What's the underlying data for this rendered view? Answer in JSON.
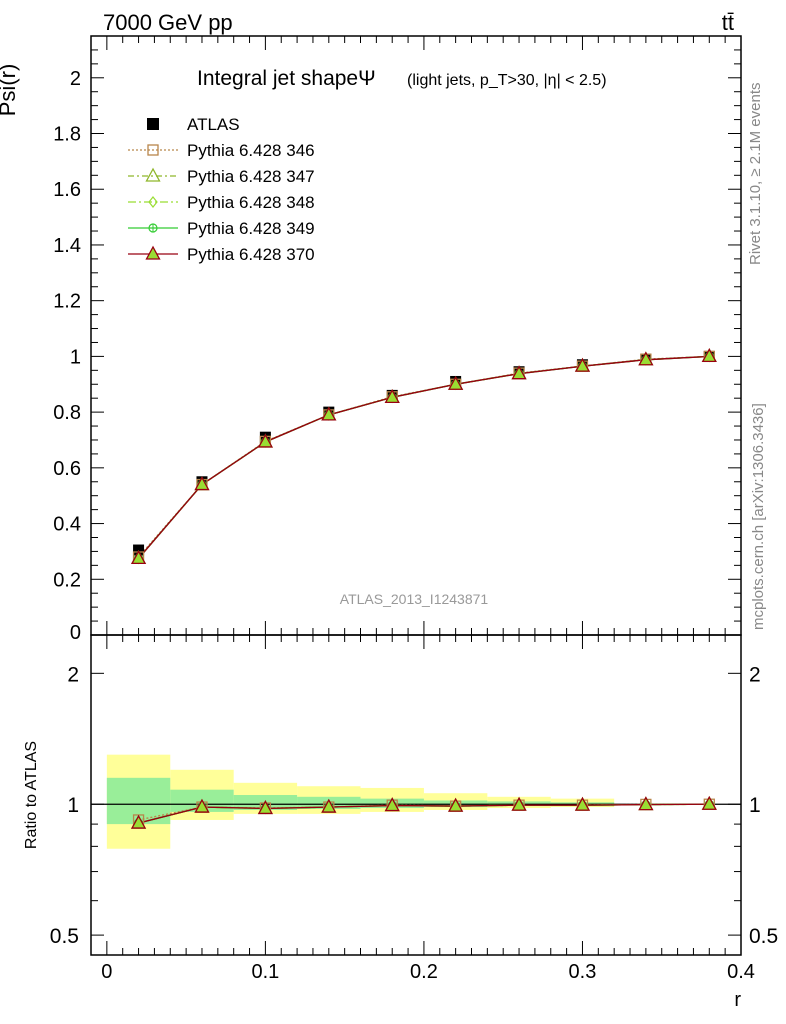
{
  "header": {
    "energy_label": "7000 GeV pp",
    "process_label": "tt̄"
  },
  "side_labels": {
    "rivet": "Rivet 3.1.10, ≥ 2.1M events",
    "mcplots": "mcplots.cern.ch [arXiv:1306.3436]"
  },
  "chart_data": [
    {
      "type": "line",
      "title": "Integral jet shapeΨ",
      "subtitle": "(light jets, p_T>30, |η| < 2.5)",
      "ylabel": "Psi(r)",
      "xlabel": "r",
      "xlim": [
        -0.01,
        0.4
      ],
      "ylim": [
        0,
        2.15
      ],
      "grid": false,
      "legend_placement": "top-left",
      "watermark": "ATLAS_2013_I1243871",
      "x": [
        0.02,
        0.06,
        0.1,
        0.14,
        0.18,
        0.22,
        0.26,
        0.3,
        0.34,
        0.38
      ],
      "y_ticks": [
        0.2,
        0.4,
        0.6,
        0.8,
        1,
        1.2,
        1.4,
        1.6,
        1.8,
        2
      ],
      "y_tick_labels": [
        "0.2",
        "0.4",
        "0.6",
        "0.8",
        "1",
        "1.2",
        "1.4",
        "1.6",
        "1.8",
        "2"
      ],
      "x_ticks": [
        0,
        0.1,
        0.2,
        0.3,
        0.4
      ],
      "x_tick_labels": [
        "0",
        "0.1",
        "0.2",
        "0.3",
        "0.4"
      ],
      "data": {
        "name": "ATLAS",
        "values": [
          0.305,
          0.55,
          0.71,
          0.8,
          0.86,
          0.91,
          0.945,
          0.97,
          0.99,
          1.0
        ]
      },
      "series": [
        {
          "name": "Pythia 6.428 346",
          "color": "#b8864b",
          "values": [
            0.28,
            0.54,
            0.695,
            0.79,
            0.855,
            0.9,
            0.94,
            0.965,
            0.99,
            1.0
          ]
        },
        {
          "name": "Pythia 6.428 347",
          "color": "#8fb62b",
          "values": [
            0.275,
            0.54,
            0.693,
            0.79,
            0.853,
            0.9,
            0.938,
            0.965,
            0.988,
            1.0
          ]
        },
        {
          "name": "Pythia 6.428 348",
          "color": "#99dd33",
          "values": [
            0.275,
            0.54,
            0.693,
            0.79,
            0.853,
            0.9,
            0.938,
            0.965,
            0.988,
            1.0
          ]
        },
        {
          "name": "Pythia 6.428 349",
          "color": "#33cc33",
          "values": [
            0.275,
            0.54,
            0.693,
            0.79,
            0.853,
            0.9,
            0.938,
            0.965,
            0.988,
            1.0
          ]
        },
        {
          "name": "Pythia 6.428 370",
          "color": "#990011",
          "values": [
            0.275,
            0.54,
            0.693,
            0.79,
            0.853,
            0.9,
            0.938,
            0.965,
            0.988,
            1.0
          ]
        }
      ]
    },
    {
      "type": "line",
      "title": "",
      "ylabel": "Ratio to ATLAS",
      "xlabel": "r",
      "xlim": [
        -0.01,
        0.4
      ],
      "ylim": [
        0.45,
        2.45
      ],
      "y_scale": "log",
      "y_ticks": [
        0.5,
        1,
        2
      ],
      "y_tick_labels": [
        "0.5",
        "1",
        "2"
      ],
      "x": [
        0.02,
        0.06,
        0.1,
        0.14,
        0.18,
        0.22,
        0.26,
        0.3,
        0.34,
        0.38
      ],
      "uncertainty_bands": {
        "bin_edges": [
          0,
          0.04,
          0.08,
          0.12,
          0.16,
          0.2,
          0.24,
          0.28,
          0.32
        ],
        "stat": [
          [
            0.9,
            1.15
          ],
          [
            0.96,
            1.08
          ],
          [
            0.97,
            1.05
          ],
          [
            0.975,
            1.04
          ],
          [
            0.98,
            1.03
          ],
          [
            0.985,
            1.02
          ],
          [
            0.99,
            1.015
          ],
          [
            0.99,
            1.01
          ]
        ],
        "total": [
          [
            0.79,
            1.3
          ],
          [
            0.92,
            1.2
          ],
          [
            0.95,
            1.12
          ],
          [
            0.95,
            1.1
          ],
          [
            0.96,
            1.09
          ],
          [
            0.97,
            1.06
          ],
          [
            0.98,
            1.04
          ],
          [
            0.985,
            1.03
          ]
        ],
        "stat_color": "#99ee99",
        "total_color": "#ffff99"
      },
      "series": [
        {
          "name": "Pythia 6.428 346",
          "values": [
            0.92,
            0.985,
            0.98,
            0.985,
            0.995,
            0.99,
            0.995,
            0.995,
            0.999,
            1.0
          ]
        },
        {
          "name": "Pythia 6.428 347",
          "values": [
            0.905,
            0.985,
            0.978,
            0.985,
            0.993,
            0.99,
            0.995,
            0.995,
            0.998,
            1.0
          ]
        },
        {
          "name": "Pythia 6.428 348",
          "values": [
            0.905,
            0.985,
            0.978,
            0.985,
            0.993,
            0.99,
            0.995,
            0.995,
            0.998,
            1.0
          ]
        },
        {
          "name": "Pythia 6.428 349",
          "values": [
            0.905,
            0.985,
            0.978,
            0.985,
            0.993,
            0.99,
            0.995,
            0.995,
            0.998,
            1.0
          ]
        },
        {
          "name": "Pythia 6.428 370",
          "values": [
            0.905,
            0.985,
            0.978,
            0.985,
            0.993,
            0.99,
            0.995,
            0.995,
            0.998,
            1.0
          ]
        }
      ]
    }
  ]
}
